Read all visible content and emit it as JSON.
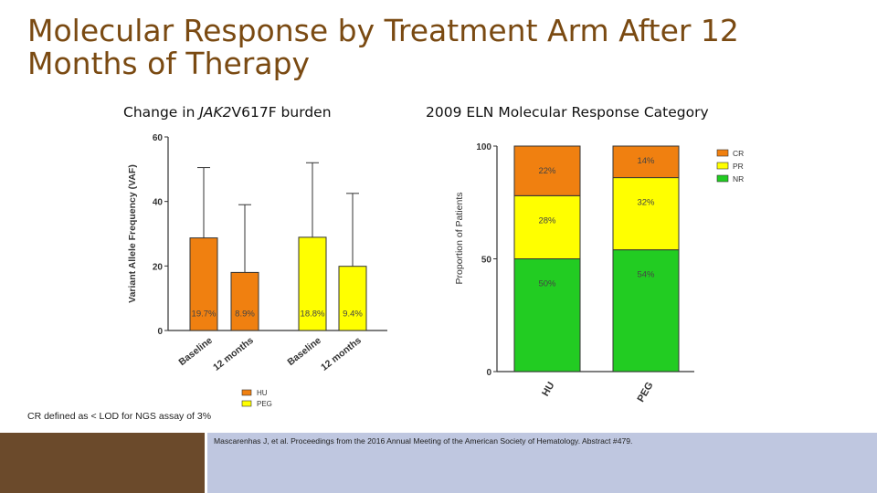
{
  "title": "Molecular Response by Treatment Arm After 12 Months of Therapy",
  "left_subtitle": {
    "before": "Change in ",
    "italic": "JAK2",
    "after": "V617F burden"
  },
  "right_subtitle": "2009 ELN Molecular Response Category",
  "footnote": "CR defined as < LOD for NGS assay of 3%",
  "citation": "Mascarenhas J, et al. Proceedings from the 2016 Annual Meeting of the American Society of Hematology. Abstract #479.",
  "colors": {
    "HU": "#f08010",
    "PEG": "#ffff00",
    "CR": "#f08010",
    "PR": "#ffff00",
    "NR": "#22cc22",
    "title": "#7a4a12"
  },
  "chart_data": [
    {
      "type": "bar",
      "ylabel": "Variant Allele Frequency (VAF)",
      "ylim": [
        0,
        60
      ],
      "yticks": [
        "0",
        "20",
        "40",
        "60"
      ],
      "categories": [
        "Baseline",
        "12 months",
        "Baseline",
        "12 months"
      ],
      "groups": [
        "HU",
        "HU",
        "PEG",
        "PEG"
      ],
      "values": [
        28.7,
        18.0,
        28.9,
        19.9
      ],
      "error_upper": [
        50.5,
        39.0,
        52.0,
        42.5
      ],
      "data_labels": [
        "19.7%",
        "8.9%",
        "18.8%",
        "9.4%"
      ],
      "legend": [
        "HU",
        "PEG"
      ]
    },
    {
      "type": "bar",
      "stacked": true,
      "ylabel": "Proportion of Patients",
      "ylim": [
        0,
        100
      ],
      "yticks": [
        "0",
        "50",
        "100"
      ],
      "categories": [
        "HU",
        "PEG"
      ],
      "series": [
        {
          "name": "NR",
          "values": [
            50,
            54
          ],
          "labels": [
            "50%",
            "54%"
          ]
        },
        {
          "name": "PR",
          "values": [
            28,
            32
          ],
          "labels": [
            "28%",
            "32%"
          ]
        },
        {
          "name": "CR",
          "values": [
            22,
            14
          ],
          "labels": [
            "22%",
            "14%"
          ]
        }
      ],
      "legend": [
        "CR",
        "PR",
        "NR"
      ],
      "legend_position": "top-right"
    }
  ]
}
